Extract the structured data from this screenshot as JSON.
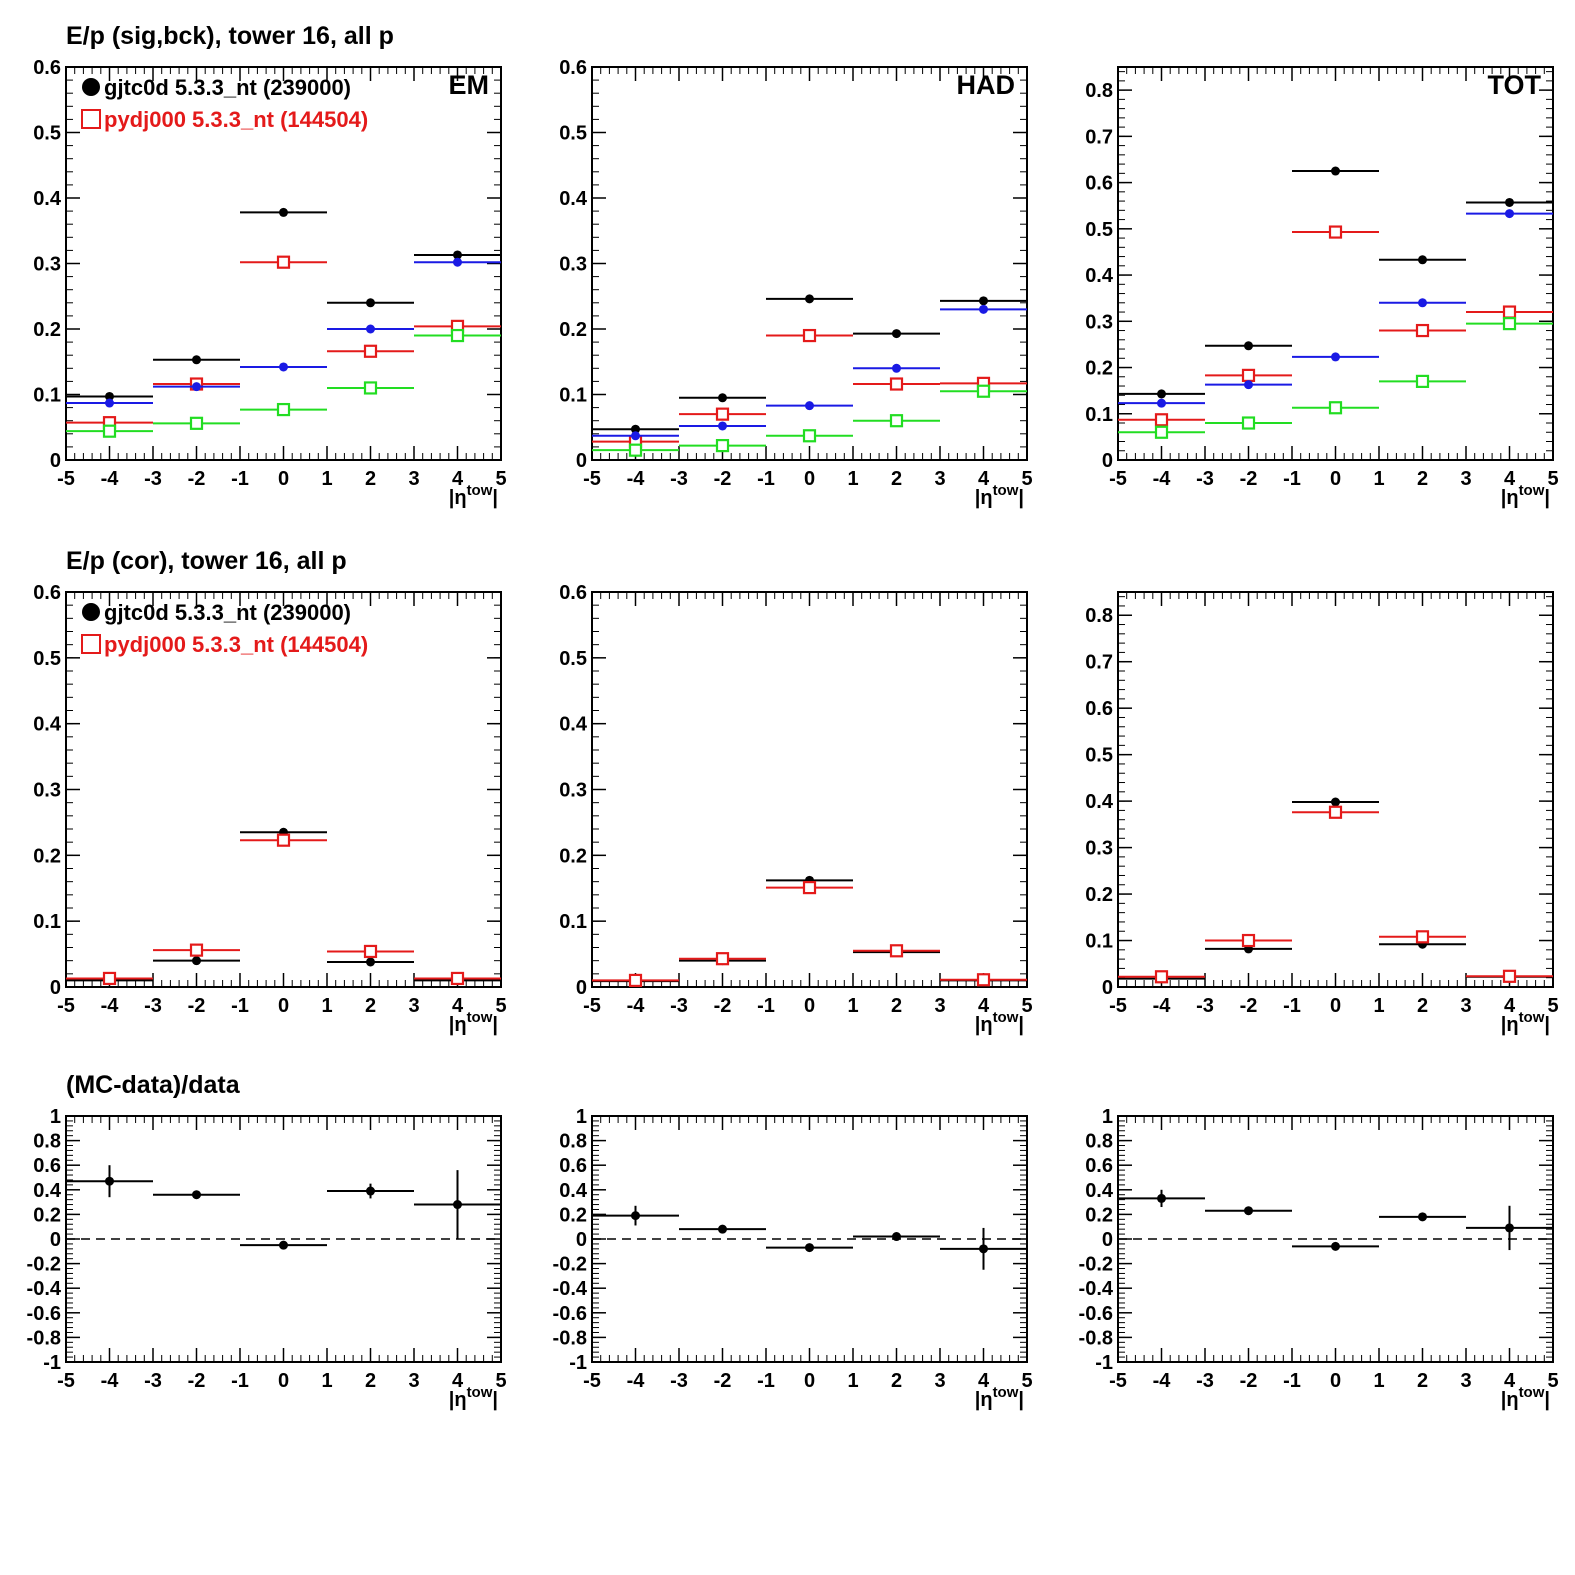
{
  "row_titles": [
    "E/p (sig,bck), tower 16, all p",
    "E/p (cor), tower 16, all p",
    "(MC-data)/data"
  ],
  "legend": {
    "entries": [
      {
        "label": "gjtc0d 5.3.3_nt (239000)",
        "color": "#000000",
        "marker": "filled-circle"
      },
      {
        "label": "pydj000 5.3.3_nt (144504)",
        "color": "#e41a1a",
        "marker": "open-square"
      }
    ]
  },
  "panel_labels": [
    "EM",
    "HAD",
    "TOT"
  ],
  "x_axis_label": "|η^tow|",
  "x_ticks": [
    "-5",
    "-4",
    "-3",
    "-2",
    "-1",
    "0",
    "1",
    "2",
    "3",
    "4",
    "5"
  ],
  "colors": {
    "black": "#000000",
    "red": "#e41a1a",
    "blue": "#1a1ae4",
    "green": "#22dd22"
  },
  "chart_data": [
    {
      "type": "scatter",
      "row": 0,
      "col": 0,
      "label": "EM",
      "xlim": [
        -5,
        5
      ],
      "ylim": [
        0,
        0.6
      ],
      "yticks": [
        "0",
        "0.1",
        "0.2",
        "0.3",
        "0.4",
        "0.5",
        "0.6"
      ],
      "bins": [
        [
          -5,
          -3
        ],
        [
          -3,
          -1
        ],
        [
          -1,
          1
        ],
        [
          1,
          3
        ],
        [
          3,
          5
        ]
      ],
      "series": [
        {
          "color": "black",
          "marker": "filled-circle",
          "values": [
            0.097,
            0.153,
            0.378,
            0.24,
            0.313
          ]
        },
        {
          "color": "red",
          "marker": "open-square",
          "values": [
            0.057,
            0.116,
            0.302,
            0.166,
            0.204
          ]
        },
        {
          "color": "blue",
          "marker": "filled-circle",
          "values": [
            0.087,
            0.112,
            0.142,
            0.2,
            0.302
          ]
        },
        {
          "color": "green",
          "marker": "open-square",
          "values": [
            0.044,
            0.056,
            0.077,
            0.11,
            0.19
          ]
        }
      ]
    },
    {
      "type": "scatter",
      "row": 0,
      "col": 1,
      "label": "HAD",
      "xlim": [
        -5,
        5
      ],
      "ylim": [
        0,
        0.6
      ],
      "yticks": [
        "0",
        "0.1",
        "0.2",
        "0.3",
        "0.4",
        "0.5",
        "0.6"
      ],
      "bins": [
        [
          -5,
          -3
        ],
        [
          -3,
          -1
        ],
        [
          -1,
          1
        ],
        [
          1,
          3
        ],
        [
          3,
          5
        ]
      ],
      "series": [
        {
          "color": "black",
          "marker": "filled-circle",
          "values": [
            0.047,
            0.095,
            0.246,
            0.193,
            0.243
          ]
        },
        {
          "color": "red",
          "marker": "open-square",
          "values": [
            0.028,
            0.07,
            0.19,
            0.116,
            0.117
          ]
        },
        {
          "color": "blue",
          "marker": "filled-circle",
          "values": [
            0.037,
            0.052,
            0.083,
            0.14,
            0.23
          ]
        },
        {
          "color": "green",
          "marker": "open-square",
          "values": [
            0.015,
            0.022,
            0.037,
            0.06,
            0.105
          ]
        }
      ]
    },
    {
      "type": "scatter",
      "row": 0,
      "col": 2,
      "label": "TOT",
      "xlim": [
        -5,
        5
      ],
      "ylim": [
        0,
        0.85
      ],
      "yticks": [
        "0",
        "0.1",
        "0.2",
        "0.3",
        "0.4",
        "0.5",
        "0.6",
        "0.7",
        "0.8"
      ],
      "bins": [
        [
          -5,
          -3
        ],
        [
          -3,
          -1
        ],
        [
          -1,
          1
        ],
        [
          1,
          3
        ],
        [
          3,
          5
        ]
      ],
      "series": [
        {
          "color": "black",
          "marker": "filled-circle",
          "values": [
            0.143,
            0.247,
            0.625,
            0.433,
            0.557
          ]
        },
        {
          "color": "red",
          "marker": "open-square",
          "values": [
            0.087,
            0.183,
            0.493,
            0.28,
            0.32
          ]
        },
        {
          "color": "blue",
          "marker": "filled-circle",
          "values": [
            0.123,
            0.163,
            0.223,
            0.34,
            0.533
          ]
        },
        {
          "color": "green",
          "marker": "open-square",
          "values": [
            0.06,
            0.08,
            0.113,
            0.17,
            0.295
          ]
        }
      ]
    },
    {
      "type": "scatter",
      "row": 1,
      "col": 0,
      "xlim": [
        -5,
        5
      ],
      "ylim": [
        0,
        0.6
      ],
      "yticks": [
        "0",
        "0.1",
        "0.2",
        "0.3",
        "0.4",
        "0.5",
        "0.6"
      ],
      "bins": [
        [
          -5,
          -3
        ],
        [
          -3,
          -1
        ],
        [
          -1,
          1
        ],
        [
          1,
          3
        ],
        [
          3,
          5
        ]
      ],
      "series": [
        {
          "color": "black",
          "marker": "filled-circle",
          "values": [
            0.01,
            0.04,
            0.235,
            0.038,
            0.01
          ]
        },
        {
          "color": "red",
          "marker": "open-square",
          "values": [
            0.013,
            0.056,
            0.223,
            0.054,
            0.013
          ]
        }
      ]
    },
    {
      "type": "scatter",
      "row": 1,
      "col": 1,
      "xlim": [
        -5,
        5
      ],
      "ylim": [
        0,
        0.6
      ],
      "yticks": [
        "0",
        "0.1",
        "0.2",
        "0.3",
        "0.4",
        "0.5",
        "0.6"
      ],
      "bins": [
        [
          -5,
          -3
        ],
        [
          -3,
          -1
        ],
        [
          -1,
          1
        ],
        [
          1,
          3
        ],
        [
          3,
          5
        ]
      ],
      "series": [
        {
          "color": "black",
          "marker": "filled-circle",
          "values": [
            0.009,
            0.04,
            0.162,
            0.053,
            0.01
          ]
        },
        {
          "color": "red",
          "marker": "open-square",
          "values": [
            0.01,
            0.043,
            0.151,
            0.055,
            0.011
          ]
        }
      ]
    },
    {
      "type": "scatter",
      "row": 1,
      "col": 2,
      "xlim": [
        -5,
        5
      ],
      "ylim": [
        0,
        0.85
      ],
      "yticks": [
        "0",
        "0.1",
        "0.2",
        "0.3",
        "0.4",
        "0.5",
        "0.6",
        "0.7",
        "0.8"
      ],
      "bins": [
        [
          -5,
          -3
        ],
        [
          -3,
          -1
        ],
        [
          -1,
          1
        ],
        [
          1,
          3
        ],
        [
          3,
          5
        ]
      ],
      "series": [
        {
          "color": "black",
          "marker": "filled-circle",
          "values": [
            0.018,
            0.082,
            0.398,
            0.092,
            0.022
          ]
        },
        {
          "color": "red",
          "marker": "open-square",
          "values": [
            0.022,
            0.1,
            0.376,
            0.108,
            0.023
          ]
        }
      ]
    },
    {
      "type": "scatter",
      "row": 2,
      "col": 0,
      "xlim": [
        -5,
        5
      ],
      "ylim": [
        -1,
        1
      ],
      "reference_line": 0,
      "yticks": [
        "-1",
        "-0.8",
        "-0.6",
        "-0.4",
        "-0.2",
        "0",
        "0.2",
        "0.4",
        "0.6",
        "0.8",
        "1"
      ],
      "bins": [
        [
          -5,
          -3
        ],
        [
          -3,
          -1
        ],
        [
          -1,
          1
        ],
        [
          1,
          3
        ],
        [
          3,
          5
        ]
      ],
      "series": [
        {
          "color": "black",
          "marker": "filled-circle",
          "values": [
            0.47,
            0.36,
            -0.05,
            0.39,
            0.28
          ],
          "errors": [
            0.13,
            0.02,
            0.01,
            0.06,
            0.28
          ]
        }
      ]
    },
    {
      "type": "scatter",
      "row": 2,
      "col": 1,
      "xlim": [
        -5,
        5
      ],
      "ylim": [
        -1,
        1
      ],
      "reference_line": 0,
      "yticks": [
        "-1",
        "-0.8",
        "-0.6",
        "-0.4",
        "-0.2",
        "0",
        "0.2",
        "0.4",
        "0.6",
        "0.8",
        "1"
      ],
      "bins": [
        [
          -5,
          -3
        ],
        [
          -3,
          -1
        ],
        [
          -1,
          1
        ],
        [
          1,
          3
        ],
        [
          3,
          5
        ]
      ],
      "series": [
        {
          "color": "black",
          "marker": "filled-circle",
          "values": [
            0.19,
            0.08,
            -0.07,
            0.02,
            -0.08
          ],
          "errors": [
            0.08,
            0.01,
            0.01,
            0.02,
            0.17
          ]
        }
      ]
    },
    {
      "type": "scatter",
      "row": 2,
      "col": 2,
      "xlim": [
        -5,
        5
      ],
      "ylim": [
        -1,
        1
      ],
      "reference_line": 0,
      "yticks": [
        "-1",
        "-0.8",
        "-0.6",
        "-0.4",
        "-0.2",
        "0",
        "0.2",
        "0.4",
        "0.6",
        "0.8",
        "1"
      ],
      "bins": [
        [
          -5,
          -3
        ],
        [
          -3,
          -1
        ],
        [
          -1,
          1
        ],
        [
          1,
          3
        ],
        [
          3,
          5
        ]
      ],
      "series": [
        {
          "color": "black",
          "marker": "filled-circle",
          "values": [
            0.33,
            0.23,
            -0.06,
            0.18,
            0.09
          ],
          "errors": [
            0.07,
            0.01,
            0.01,
            0.01,
            0.18
          ]
        }
      ]
    }
  ]
}
